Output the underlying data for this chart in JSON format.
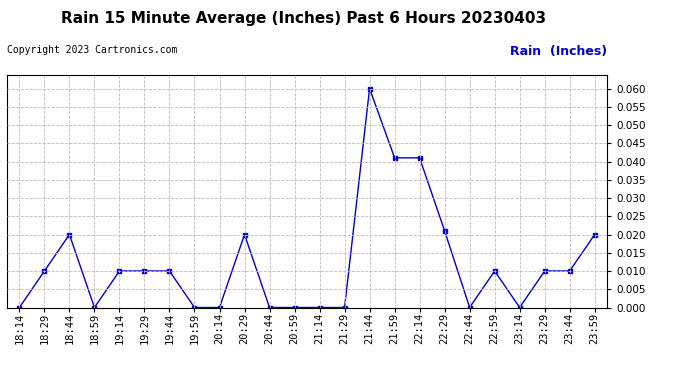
{
  "title": "Rain 15 Minute Average (Inches) Past 6 Hours 20230403",
  "copyright_text": "Copyright 2023 Cartronics.com",
  "legend_label": "Rain  (Inches)",
  "x_labels": [
    "18:14",
    "18:29",
    "18:44",
    "18:59",
    "19:14",
    "19:29",
    "19:44",
    "19:59",
    "20:14",
    "20:29",
    "20:44",
    "20:59",
    "21:14",
    "21:29",
    "21:44",
    "21:59",
    "22:14",
    "22:29",
    "22:44",
    "22:59",
    "23:14",
    "23:29",
    "23:44",
    "23:59"
  ],
  "y_values": [
    0.0,
    0.01,
    0.02,
    0.0,
    0.01,
    0.01,
    0.01,
    0.0,
    0.0,
    0.02,
    0.0,
    0.0,
    0.0,
    0.0,
    0.06,
    0.041,
    0.041,
    0.021,
    0.0,
    0.01,
    0.0,
    0.01,
    0.01,
    0.02
  ],
  "line_color": "#0000cc",
  "marker_color": "#0000cc",
  "grid_color": "#bbbbbb",
  "bg_color": "#ffffff",
  "title_color": "#000000",
  "copyright_color": "#000000",
  "legend_color": "#0000cc",
  "ylim": [
    0.0,
    0.0637
  ],
  "yticks": [
    0.0,
    0.005,
    0.01,
    0.015,
    0.02,
    0.025,
    0.03,
    0.035,
    0.04,
    0.045,
    0.05,
    0.055,
    0.06
  ],
  "title_fontsize": 11,
  "copyright_fontsize": 7,
  "legend_fontsize": 9,
  "tick_fontsize": 7.5
}
